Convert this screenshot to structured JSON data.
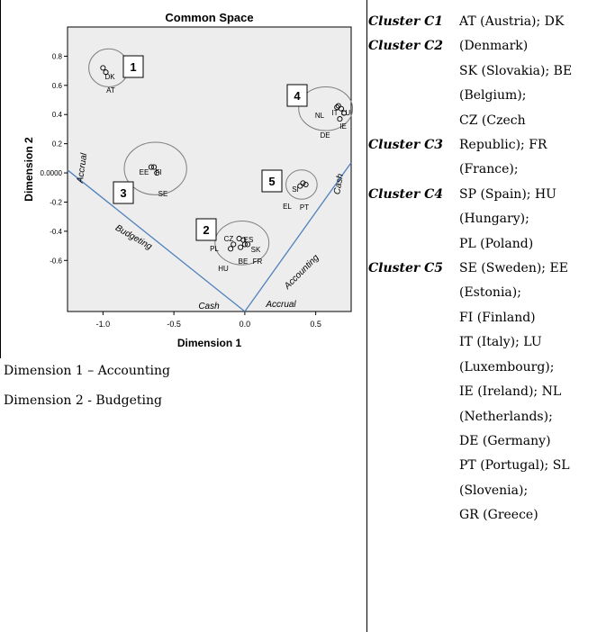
{
  "chart_data": {
    "type": "scatter",
    "title": "Common Space",
    "xlabel": "Dimension 1",
    "ylabel": "Dimension 2",
    "xlim": [
      -1.25,
      0.75
    ],
    "ylim": [
      -0.95,
      1.0
    ],
    "x_ticks": [
      "-1.0",
      "-0.5",
      "0.0",
      "0.5"
    ],
    "x_tick_values": [
      -1.0,
      -0.5,
      0.0,
      0.5
    ],
    "y_ticks": [
      "0.8",
      "0.6",
      "0.4",
      "0.2",
      "0.0000",
      "-0.2",
      "-0.4",
      "-0.6"
    ],
    "y_tick_values": [
      0.8,
      0.6,
      0.4,
      0.2,
      0.0,
      -0.2,
      -0.4,
      -0.6
    ],
    "grid": false,
    "points": [
      {
        "label": "DK",
        "x": -1.0,
        "y": 0.72
      },
      {
        "label": "AT",
        "x": -0.98,
        "y": 0.69
      },
      {
        "label": "EE",
        "x": -0.66,
        "y": 0.04
      },
      {
        "label": "FI",
        "x": -0.64,
        "y": 0.04
      },
      {
        "label": "SE",
        "x": -0.62,
        "y": 0.0
      },
      {
        "label": "NL",
        "x": 0.65,
        "y": 0.45
      },
      {
        "label": "IT",
        "x": 0.66,
        "y": 0.46
      },
      {
        "label": "LU",
        "x": 0.68,
        "y": 0.44
      },
      {
        "label": "IE",
        "x": 0.7,
        "y": 0.41
      },
      {
        "label": "DE",
        "x": 0.67,
        "y": 0.37
      },
      {
        "label": "SI",
        "x": 0.41,
        "y": -0.07
      },
      {
        "label": "EL",
        "x": 0.39,
        "y": -0.09
      },
      {
        "label": "PT",
        "x": 0.43,
        "y": -0.08
      },
      {
        "label": "CZ",
        "x": -0.04,
        "y": -0.45
      },
      {
        "label": "ES",
        "x": -0.01,
        "y": -0.46
      },
      {
        "label": "SK",
        "x": 0.0,
        "y": -0.49
      },
      {
        "label": "PL",
        "x": -0.08,
        "y": -0.49
      },
      {
        "label": "BE",
        "x": -0.03,
        "y": -0.51
      },
      {
        "label": "FR",
        "x": 0.02,
        "y": -0.49
      },
      {
        "label": "HU",
        "x": -0.1,
        "y": -0.52
      }
    ],
    "clusters": [
      {
        "number": "1",
        "cx": -0.96,
        "cy": 0.72,
        "rx": 0.14,
        "ry": 0.13
      },
      {
        "number": "3",
        "cx": -0.63,
        "cy": 0.03,
        "rx": 0.22,
        "ry": 0.18
      },
      {
        "number": "4",
        "cx": 0.57,
        "cy": 0.44,
        "rx": 0.19,
        "ry": 0.15
      },
      {
        "number": "5",
        "cx": 0.4,
        "cy": -0.08,
        "rx": 0.11,
        "ry": 0.1
      },
      {
        "number": "2",
        "cx": -0.02,
        "cy": -0.48,
        "rx": 0.19,
        "ry": 0.15
      }
    ],
    "annotations": [
      {
        "text": "Accrual",
        "angle": -82
      },
      {
        "text": "Budgeting",
        "angle": 30
      },
      {
        "text": "Cash",
        "angle": 0
      },
      {
        "text": "Accrual",
        "angle": 0
      },
      {
        "text": "Accounting",
        "angle": -45
      },
      {
        "text": "Cash",
        "angle": -80
      }
    ]
  },
  "dimensions": {
    "dim1": "Dimension 1 – Accounting",
    "dim2": "Dimension 2 - Budgeting"
  },
  "cluster_table": [
    {
      "label": "Cluster C1",
      "value": "AT (Austria); DK"
    },
    {
      "label": "Cluster C2",
      "value": "(Denmark)"
    },
    {
      "label": "",
      "value": "SK (Slovakia); BE"
    },
    {
      "label": "",
      "value": "(Belgium);"
    },
    {
      "label": "",
      "value": "CZ (Czech"
    },
    {
      "label": "Cluster C3",
      "value": "Republic); FR"
    },
    {
      "label": "",
      "value": "(France);"
    },
    {
      "label": "Cluster C4",
      "value": "SP (Spain); HU"
    },
    {
      "label": "",
      "value": "(Hungary);"
    },
    {
      "label": "",
      "value": "PL (Poland)"
    },
    {
      "label": "Cluster C5",
      "value": "SE (Sweden); EE"
    },
    {
      "label": "",
      "value": "(Estonia);"
    },
    {
      "label": "",
      "value": "FI (Finland)"
    },
    {
      "label": "",
      "value": "IT (Italy); LU"
    },
    {
      "label": "",
      "value": "(Luxembourg);"
    },
    {
      "label": "",
      "value": "IE (Ireland); NL"
    },
    {
      "label": "",
      "value": "(Netherlands);"
    },
    {
      "label": "",
      "value": "DE (Germany)"
    },
    {
      "label": "",
      "value": "PT (Portugal); SL"
    },
    {
      "label": "",
      "value": "(Slovenia);"
    },
    {
      "label": "",
      "value": "GR (Greece)"
    }
  ]
}
